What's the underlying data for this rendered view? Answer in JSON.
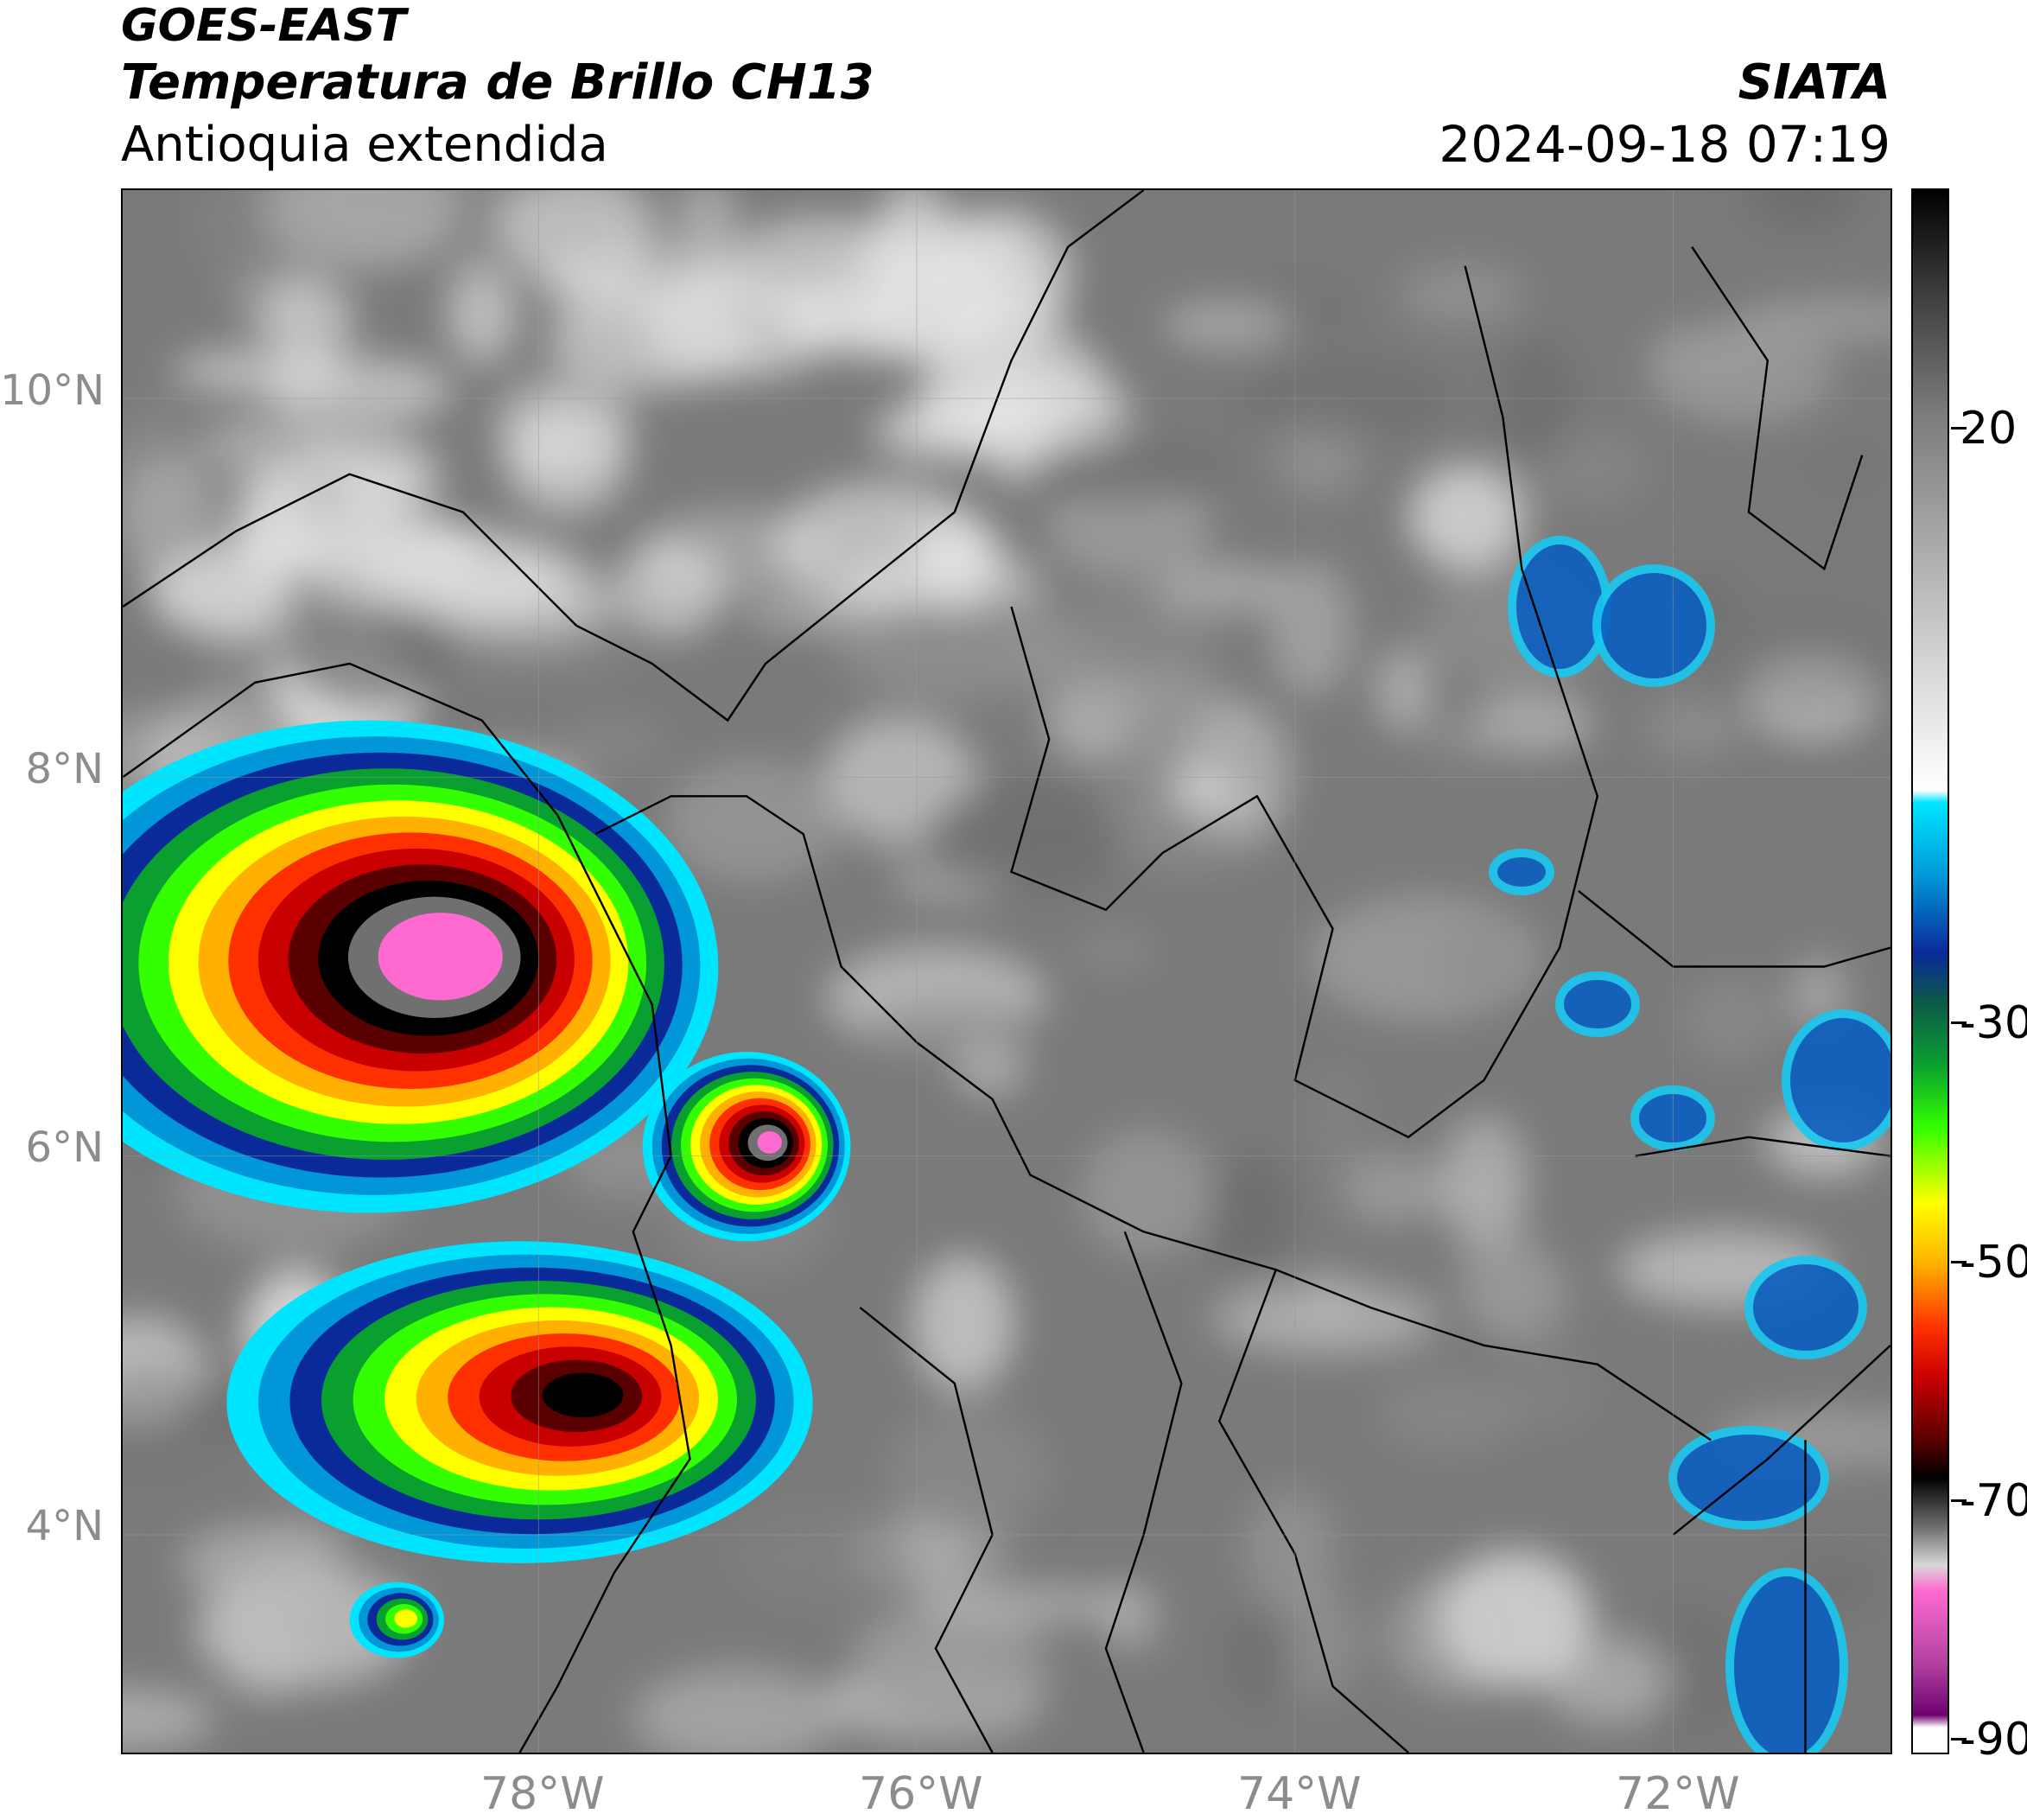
{
  "header": {
    "satellite": "GOES-EAST",
    "product": "Temperatura de Brillo CH13",
    "region": "Antioquia extendida",
    "agency": "SIATA",
    "datetime": "2024-09-18 07:19"
  },
  "map": {
    "lat_ticks": [
      "10°N",
      "8°N",
      "6°N",
      "4°N"
    ],
    "lon_ticks": [
      "78°W",
      "76°W",
      "74°W",
      "72°W"
    ],
    "lat_range": [
      2.85,
      11.1
    ],
    "lon_range": [
      -80.2,
      -70.85
    ],
    "background_color": "#7a7a7a"
  },
  "colorbar": {
    "labels": [
      "20",
      "-30",
      "-50",
      "-70",
      "-90"
    ],
    "range": [
      -92,
      33
    ],
    "stops": [
      {
        "v": 33,
        "c": "#000000"
      },
      {
        "v": 25,
        "c": "#3c3c3c"
      },
      {
        "v": 15,
        "c": "#7c7c7c"
      },
      {
        "v": 5,
        "c": "#a8a8a8"
      },
      {
        "v": -5,
        "c": "#d6d6d6"
      },
      {
        "v": -15,
        "c": "#ffffff"
      },
      {
        "v": -16,
        "c": "#00e5ff"
      },
      {
        "v": -22,
        "c": "#0096d8"
      },
      {
        "v": -28,
        "c": "#0a2a9a"
      },
      {
        "v": -32,
        "c": "#0c5a48"
      },
      {
        "v": -37,
        "c": "#0aa030"
      },
      {
        "v": -42,
        "c": "#33ff00"
      },
      {
        "v": -48,
        "c": "#ffff00"
      },
      {
        "v": -53,
        "c": "#ffb000"
      },
      {
        "v": -58,
        "c": "#ff3000"
      },
      {
        "v": -62,
        "c": "#c80000"
      },
      {
        "v": -67,
        "c": "#5a0000"
      },
      {
        "v": -70,
        "c": "#000000"
      },
      {
        "v": -74,
        "c": "#707070"
      },
      {
        "v": -77,
        "c": "#d8d8d8"
      },
      {
        "v": -79,
        "c": "#ff6ad0"
      },
      {
        "v": -85,
        "c": "#b040a0"
      },
      {
        "v": -89,
        "c": "#700070"
      },
      {
        "v": -90,
        "c": "#ffffff"
      }
    ]
  },
  "storm_cells": [
    {
      "name": "west-panama-cell",
      "lon": -78.9,
      "lat": 7.0,
      "rx_deg": 1.85,
      "ry_deg": 1.3,
      "min_temp": -86
    },
    {
      "name": "choco-cell",
      "lon": -76.9,
      "lat": 6.05,
      "rx_deg": 0.55,
      "ry_deg": 0.5,
      "min_temp": -82
    },
    {
      "name": "pacific-south-cell",
      "lon": -78.1,
      "lat": 4.7,
      "rx_deg": 1.55,
      "ry_deg": 0.85,
      "min_temp": -74
    },
    {
      "name": "small-cell-south",
      "lon": -78.75,
      "lat": 3.55,
      "rx_deg": 0.25,
      "ry_deg": 0.2,
      "min_temp": -52
    }
  ],
  "borders_color": "#000000",
  "coastline": {
    "name": "coastline"
  }
}
